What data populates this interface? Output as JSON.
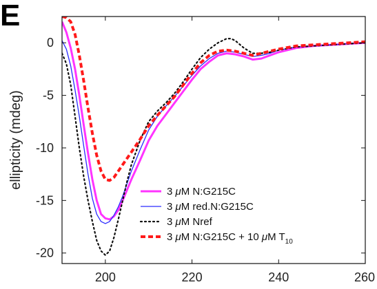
{
  "panel_label": "E",
  "chart_data": {
    "type": "line",
    "xlabel": "",
    "ylabel": "ellipticity (mdeg)",
    "xlim": [
      190,
      260
    ],
    "ylim": [
      -21,
      2.5
    ],
    "xticks": [
      200,
      220,
      240,
      260
    ],
    "yticks": [
      0,
      -5,
      -10,
      -15,
      -20
    ],
    "xtick_labels": [
      "200",
      "220",
      "240",
      "260"
    ],
    "ytick_labels": [
      "0",
      "-5",
      "-10",
      "-15",
      "-20"
    ],
    "grid": false,
    "legend_position": "bottom-right",
    "series": [
      {
        "legend_parts": [
          "3 ",
          "μ",
          "M N:G215C",
          "",
          ""
        ],
        "color": "#ff33ff",
        "style": "solid",
        "width": 3,
        "x": [
          190,
          191,
          192,
          193,
          194,
          195,
          196,
          197,
          198,
          199,
          200,
          201,
          202,
          203,
          204,
          205,
          206,
          208,
          210,
          212,
          214,
          216,
          218,
          220,
          222,
          224,
          226,
          228,
          230,
          232,
          234,
          236,
          238,
          240,
          244,
          248,
          252,
          256,
          260
        ],
        "y": [
          2.0,
          1.0,
          -0.5,
          -2.5,
          -5.0,
          -7.8,
          -10.5,
          -13.0,
          -15.0,
          -16.3,
          -16.7,
          -16.8,
          -16.5,
          -15.9,
          -15.0,
          -14.0,
          -13.0,
          -11.2,
          -9.3,
          -7.9,
          -6.8,
          -5.7,
          -4.6,
          -3.5,
          -2.5,
          -1.8,
          -1.2,
          -1.0,
          -1.1,
          -1.3,
          -1.6,
          -1.5,
          -1.2,
          -0.9,
          -0.5,
          -0.3,
          -0.2,
          -0.1,
          0.0
        ]
      },
      {
        "legend_parts": [
          "3 ",
          "μ",
          "M red.N:G215C",
          "",
          ""
        ],
        "color": "#2b2bff",
        "style": "solid",
        "width": 1.3,
        "x": [
          190,
          191,
          192,
          193,
          194,
          195,
          196,
          197,
          198,
          199,
          200,
          201,
          202,
          203,
          204,
          205,
          206,
          208,
          210,
          212,
          214,
          216,
          218,
          220,
          222,
          224,
          226,
          228,
          230,
          232,
          234,
          236,
          238,
          240,
          244,
          248,
          252,
          256,
          260
        ],
        "y": [
          0.2,
          -0.6,
          -2.2,
          -4.5,
          -7.0,
          -9.8,
          -12.5,
          -14.8,
          -16.3,
          -17.0,
          -17.2,
          -17.0,
          -16.4,
          -15.6,
          -14.6,
          -13.4,
          -12.2,
          -10.2,
          -8.3,
          -7.0,
          -6.0,
          -5.1,
          -4.1,
          -3.1,
          -2.2,
          -1.5,
          -1.0,
          -0.8,
          -0.9,
          -1.1,
          -1.3,
          -1.2,
          -1.0,
          -0.7,
          -0.4,
          -0.3,
          -0.2,
          -0.1,
          0.0
        ]
      },
      {
        "legend_parts": [
          "3 ",
          "μ",
          "M Nref",
          "",
          ""
        ],
        "color": "#111111",
        "style": "dotted",
        "width": 2.2,
        "x": [
          190,
          191,
          192,
          193,
          194,
          195,
          196,
          197,
          198,
          199,
          200,
          201,
          202,
          203,
          204,
          205,
          206,
          208,
          210,
          212,
          214,
          216,
          218,
          220,
          222,
          224,
          226,
          228,
          229,
          230,
          232,
          234,
          236,
          238,
          240,
          244,
          248,
          252,
          256,
          260
        ],
        "y": [
          -1.0,
          -2.0,
          -4.0,
          -7.0,
          -10.0,
          -12.7,
          -15.0,
          -17.0,
          -18.8,
          -19.8,
          -20.2,
          -19.8,
          -18.5,
          -16.8,
          -15.0,
          -13.2,
          -11.6,
          -9.3,
          -7.5,
          -6.5,
          -5.7,
          -4.8,
          -3.7,
          -2.5,
          -1.4,
          -0.6,
          0.0,
          0.4,
          0.4,
          0.2,
          -0.5,
          -1.0,
          -1.0,
          -0.9,
          -0.7,
          -0.4,
          -0.3,
          -0.2,
          -0.1,
          0.0
        ]
      },
      {
        "legend_parts": [
          "3 ",
          "μ",
          "M N:G215C + 10 ",
          "μ",
          "M T",
          "10"
        ],
        "color": "#ff1a1a",
        "style": "dashed",
        "width": 4,
        "x": [
          190,
          191,
          192,
          193,
          194,
          195,
          196,
          197,
          198,
          199,
          200,
          201,
          202,
          203,
          204,
          205,
          206,
          208,
          210,
          212,
          214,
          216,
          218,
          220,
          222,
          224,
          226,
          228,
          230,
          232,
          234,
          236,
          238,
          240,
          244,
          248,
          252,
          256,
          260
        ],
        "y": [
          2.5,
          2.4,
          2.0,
          0.8,
          -1.2,
          -3.6,
          -6.2,
          -8.6,
          -10.7,
          -12.2,
          -13.0,
          -13.1,
          -12.8,
          -12.2,
          -11.6,
          -11.0,
          -10.4,
          -9.2,
          -7.9,
          -6.9,
          -6.0,
          -5.1,
          -4.0,
          -2.9,
          -1.9,
          -1.2,
          -0.8,
          -0.7,
          -0.8,
          -1.0,
          -1.2,
          -1.0,
          -0.8,
          -0.6,
          -0.3,
          -0.2,
          -0.1,
          0.0,
          0.1
        ]
      }
    ]
  }
}
